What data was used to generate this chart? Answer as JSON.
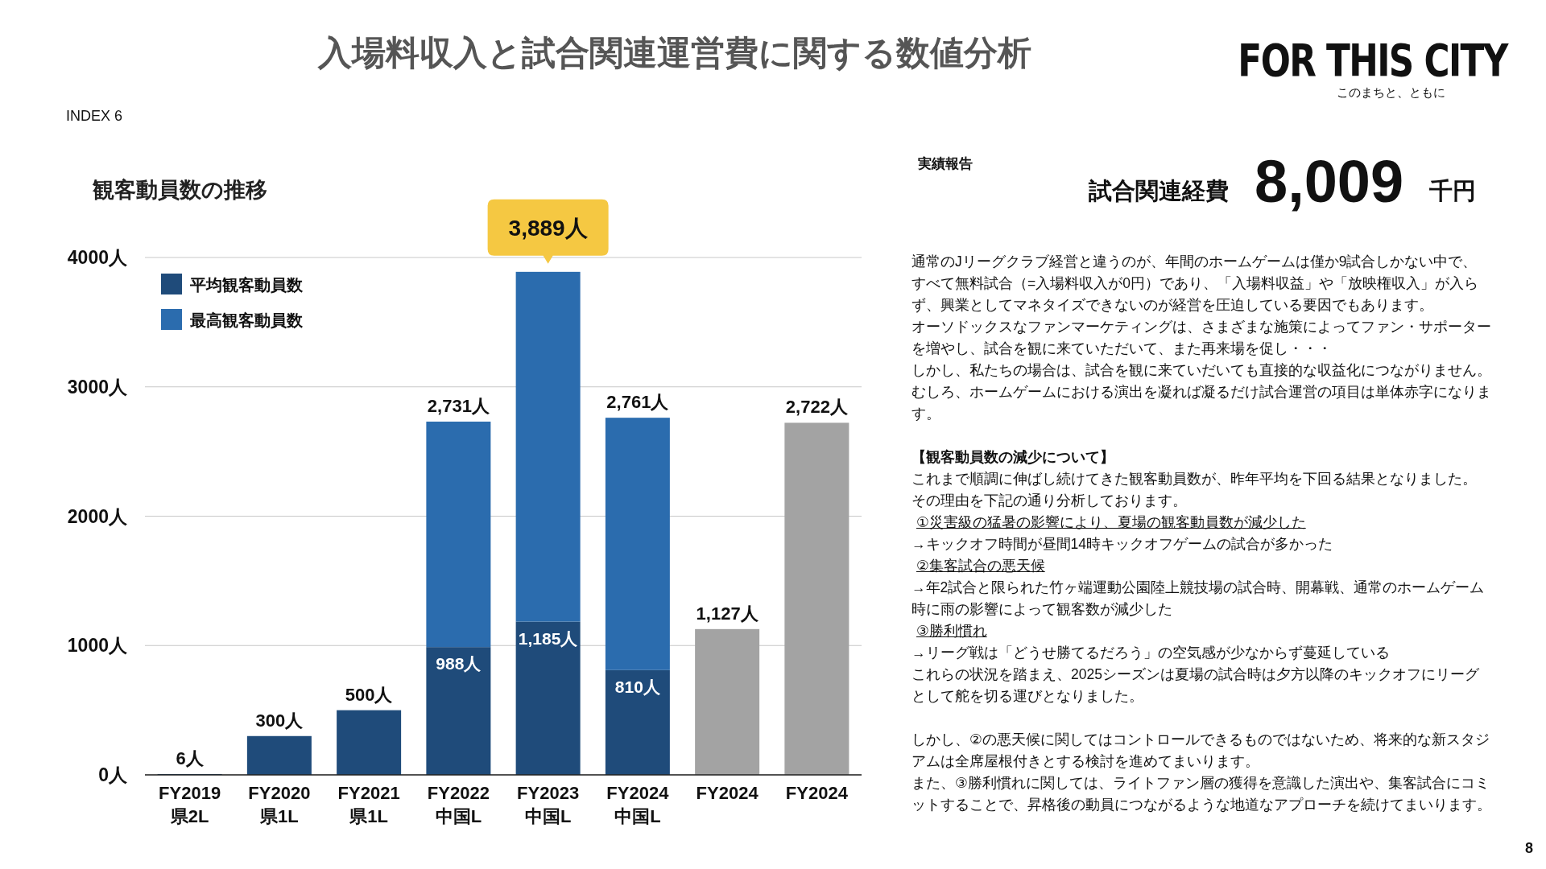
{
  "chart_data": {
    "type": "bar",
    "stacked": true,
    "title": "観客動員数の推移",
    "categories": [
      "FY2019\n県2L",
      "FY2020\n県1L",
      "FY2021\n県1L",
      "FY2022\n中国L",
      "FY2023\n中国L",
      "FY2024\n中国L",
      "FY2024",
      "FY2024"
    ],
    "series": [
      {
        "name": "平均観客動員数",
        "color": "#1f4b7a",
        "values": [
          6,
          300,
          500,
          988,
          1185,
          810,
          null,
          null
        ],
        "value_labels": [
          "6人",
          "300人",
          "500人",
          "988人",
          "1,185人",
          "810人",
          null,
          null
        ]
      },
      {
        "name": "最高観客動員数",
        "color": "#2b6cae",
        "values": [
          null,
          null,
          null,
          1743,
          2704,
          1951,
          null,
          null
        ]
      },
      {
        "color": "#a3a3a3",
        "values": [
          null,
          null,
          null,
          null,
          null,
          null,
          1127,
          2722
        ],
        "value_labels": [
          null,
          null,
          null,
          null,
          null,
          null,
          "1,127人",
          "2,722人"
        ]
      }
    ],
    "totals": [
      null,
      null,
      null,
      "2,731人",
      "3,889人",
      "2,761人",
      null,
      null
    ],
    "ylim": [
      0,
      4000
    ],
    "yticks": [
      {
        "value": 0,
        "label": "0人"
      },
      {
        "value": 1000,
        "label": "1000人"
      },
      {
        "value": 2000,
        "label": "2000人"
      },
      {
        "value": 3000,
        "label": "3000人"
      },
      {
        "value": 4000,
        "label": "4000人"
      }
    ],
    "grid": "y",
    "legend": "top left",
    "annotations": [
      "入場料収入と試合関連運営費に関する数値分析",
      "INDEX 6",
      "FOR THIS CITY",
      "このまちと、ともに",
      "実績報告",
      "試合関連経費",
      "8,009",
      "千円",
      "通常のJリーグクラブ経営と違うのが、年間のホームゲームは僅か9試合しかない中で、すべて無料試合（=入場料収入が0円）であり、「入場料収益」や「放映権収入」が入らず、興業としてマネタイズできないのが経営を圧迫している要因でもあります。",
      "オーソドックスなファンマーケティングは、さまざまな施策によってファン・サポーターを増やし、試合を観に来ていただいて、また再来場を促し・・・",
      "しかし、私たちの場合は、試合を観に来ていだいても直接的な収益化につながりません。むしろ、ホームゲームにおける演出を凝れば凝るだけ試合運営の項目は単体赤字になります。",
      "【観客動員数の減少について】",
      "これまで順調に伸ばし続けてきた観客動員数が、昨年平均を下回る結果となりました。",
      "その理由を下記の通り分析しております。",
      "①災害級の猛暑の影響により、夏場の観客動員数が減少した",
      "→キックオフ時間が昼間14時キックオフゲームの試合が多かった",
      "②集客試合の悪天候",
      "→年2試合と限られた竹ヶ端運動公園陸上競技場の試合時、開幕戦、通常のホームゲーム時に雨の影響によって観客数が減少した",
      "③勝利慣れ",
      "→リーグ戦は「どうせ勝てるだろう」の空気感が少なからず蔓延している",
      "これらの状況を踏まえ、2025シーズンは夏場の試合時は夕方以降のキックオフにリーグとして舵を切る運びとなりました。",
      "しかし、②の悪天候に関してはコントロールできるものではないため、将来的な新スタジアムは全席屋根付きとする検討を進めてまいります。",
      "また、③勝利慣れに関しては、ライトファン層の獲得を意識した演出や、集客試合にコミットすることで、昇格後の動員につながるような地道なアプローチを続けてまいります。",
      "8"
    ]
  }
}
